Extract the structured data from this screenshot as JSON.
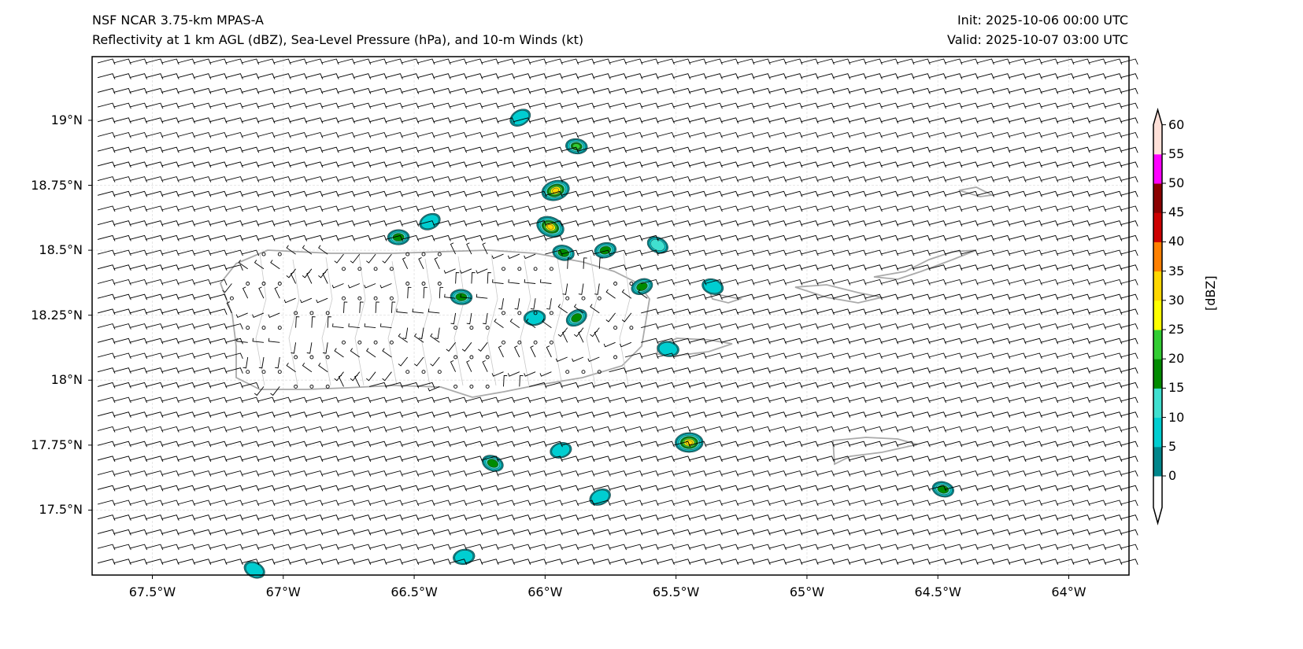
{
  "header": {
    "title": "NSF NCAR 3.75-km MPAS-A",
    "subtitle": "Reflectivity at 1 km AGL (dBZ), Sea-Level Pressure (hPa), and 10-m Winds (kt)",
    "init": "Init: 2025-10-06 00:00 UTC",
    "valid": "Valid: 2025-10-07 03:00 UTC"
  },
  "map": {
    "extent": {
      "lon": [
        -67.73,
        -63.77
      ],
      "lat": [
        17.25,
        19.245
      ]
    },
    "lon_ticks": [
      {
        "value": -67.5,
        "label": "67.5°W"
      },
      {
        "value": -67.0,
        "label": "67°W"
      },
      {
        "value": -66.5,
        "label": "66.5°W"
      },
      {
        "value": -66.0,
        "label": "66°W"
      },
      {
        "value": -65.5,
        "label": "65.5°W"
      },
      {
        "value": -65.0,
        "label": "65°W"
      },
      {
        "value": -64.5,
        "label": "64.5°W"
      },
      {
        "value": -64.0,
        "label": "64°W"
      }
    ],
    "lat_ticks": [
      {
        "value": 19.0,
        "label": "19°N"
      },
      {
        "value": 18.75,
        "label": "18.75°N"
      },
      {
        "value": 18.5,
        "label": "18.5°N"
      },
      {
        "value": 18.25,
        "label": "18.25°N"
      },
      {
        "value": 18.0,
        "label": "18°N"
      },
      {
        "value": 17.75,
        "label": "17.75°N"
      },
      {
        "value": 17.5,
        "label": "17.5°N"
      }
    ],
    "wind": {
      "direction_deg": 75,
      "speed_kt": 10
    },
    "reflectivity_cells": [
      {
        "lon": -66.095,
        "lat": 19.01,
        "max_dbz": 10
      },
      {
        "lon": -65.88,
        "lat": 18.9,
        "max_dbz": 25
      },
      {
        "lon": -65.96,
        "lat": 18.73,
        "max_dbz": 35
      },
      {
        "lon": -65.98,
        "lat": 18.59,
        "max_dbz": 35
      },
      {
        "lon": -66.56,
        "lat": 18.55,
        "max_dbz": 20
      },
      {
        "lon": -66.44,
        "lat": 18.61,
        "max_dbz": 10
      },
      {
        "lon": -65.93,
        "lat": 18.49,
        "max_dbz": 20
      },
      {
        "lon": -65.77,
        "lat": 18.5,
        "max_dbz": 20
      },
      {
        "lon": -65.57,
        "lat": 18.52,
        "max_dbz": 15
      },
      {
        "lon": -66.32,
        "lat": 18.32,
        "max_dbz": 20
      },
      {
        "lon": -65.63,
        "lat": 18.36,
        "max_dbz": 20
      },
      {
        "lon": -65.36,
        "lat": 18.36,
        "max_dbz": 10
      },
      {
        "lon": -66.04,
        "lat": 18.24,
        "max_dbz": 10
      },
      {
        "lon": -65.88,
        "lat": 18.24,
        "max_dbz": 20
      },
      {
        "lon": -65.53,
        "lat": 18.12,
        "max_dbz": 10
      },
      {
        "lon": -65.94,
        "lat": 17.73,
        "max_dbz": 10
      },
      {
        "lon": -66.2,
        "lat": 17.68,
        "max_dbz": 20
      },
      {
        "lon": -65.45,
        "lat": 17.76,
        "max_dbz": 35
      },
      {
        "lon": -65.79,
        "lat": 17.55,
        "max_dbz": 10
      },
      {
        "lon": -64.48,
        "lat": 17.58,
        "max_dbz": 20
      },
      {
        "lon": -66.31,
        "lat": 17.32,
        "max_dbz": 10
      },
      {
        "lon": -67.11,
        "lat": 17.27,
        "max_dbz": 10
      }
    ]
  },
  "colorbar": {
    "label": "[dBZ]",
    "levels": [
      0,
      5,
      10,
      15,
      20,
      25,
      30,
      35,
      40,
      45,
      50,
      55,
      60
    ],
    "tick_labels": [
      "0",
      "5",
      "10",
      "15",
      "20",
      "25",
      "30",
      "35",
      "40",
      "45",
      "50",
      "55",
      "60"
    ],
    "colors": [
      "#00868b",
      "#00ced1",
      "#40e0d0",
      "#008b00",
      "#32cd32",
      "#ffff00",
      "#ffd700",
      "#ff8000",
      "#cd0000",
      "#8b0000",
      "#ff00ff",
      "#ffe0d8"
    ]
  }
}
